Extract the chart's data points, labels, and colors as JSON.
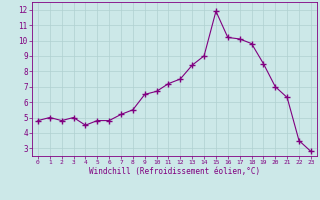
{
  "x": [
    0,
    1,
    2,
    3,
    4,
    5,
    6,
    7,
    8,
    9,
    10,
    11,
    12,
    13,
    14,
    15,
    16,
    17,
    18,
    19,
    20,
    21,
    22,
    23
  ],
  "y": [
    4.8,
    5.0,
    4.8,
    5.0,
    4.5,
    4.8,
    4.8,
    5.2,
    5.5,
    6.5,
    6.7,
    7.2,
    7.5,
    8.4,
    9.0,
    11.9,
    10.2,
    10.1,
    9.8,
    8.5,
    7.0,
    6.3,
    3.5,
    2.8
  ],
  "line_color": "#800080",
  "marker": "+",
  "marker_size": 4,
  "marker_lw": 1.0,
  "bg_color": "#cce8e8",
  "grid_color": "#b0d0d0",
  "xlabel": "Windchill (Refroidissement éolien,°C)",
  "xlabel_color": "#800080",
  "ylabel_ticks": [
    3,
    4,
    5,
    6,
    7,
    8,
    9,
    10,
    11,
    12
  ],
  "xtick_labels": [
    "0",
    "1",
    "2",
    "3",
    "4",
    "5",
    "6",
    "7",
    "8",
    "9",
    "10",
    "11",
    "12",
    "13",
    "14",
    "15",
    "16",
    "17",
    "18",
    "19",
    "20",
    "21",
    "22",
    "23"
  ],
  "ylim": [
    2.5,
    12.5
  ],
  "xlim": [
    -0.5,
    23.5
  ],
  "tick_color": "#800080",
  "axis_color": "#800080",
  "line_width": 0.8,
  "xtick_fontsize": 4.5,
  "ytick_fontsize": 5.5,
  "xlabel_fontsize": 5.5
}
